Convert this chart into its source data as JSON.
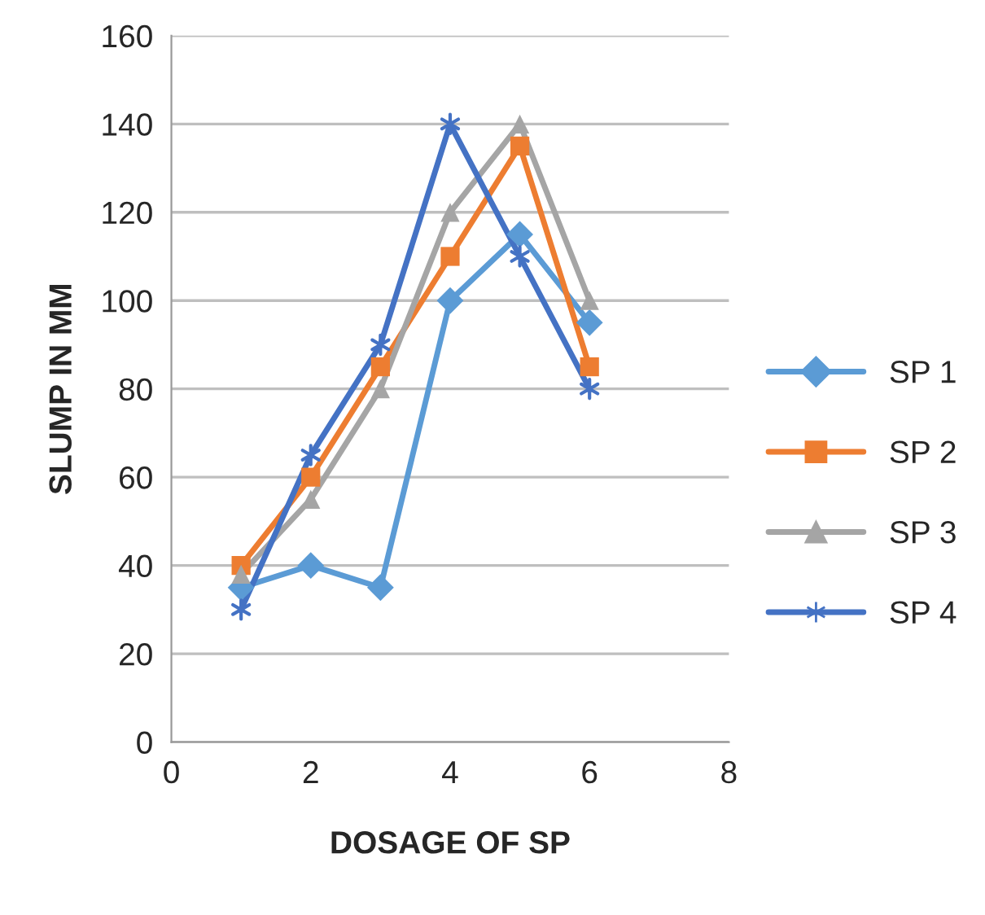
{
  "chart_data": {
    "type": "line",
    "xlabel": "DOSAGE OF SP",
    "ylabel": "SLUMP IN MM",
    "x": [
      1,
      2,
      3,
      4,
      5,
      6
    ],
    "series": [
      {
        "name": "SP 1",
        "color": "#5b9bd5",
        "marker": "diamond",
        "values": [
          35,
          40,
          35,
          100,
          115,
          95
        ]
      },
      {
        "name": "SP 2",
        "color": "#ed7d31",
        "marker": "square",
        "values": [
          40,
          60,
          85,
          110,
          135,
          85
        ]
      },
      {
        "name": "SP 3",
        "color": "#a5a5a5",
        "marker": "triangle",
        "values": [
          38,
          55,
          80,
          120,
          140,
          100
        ]
      },
      {
        "name": "SP 4",
        "color": "#4472c4",
        "marker": "cross",
        "values": [
          30,
          65,
          90,
          140,
          110,
          80
        ]
      }
    ],
    "xlim": [
      0,
      8
    ],
    "xticks": [
      0,
      2,
      4,
      6,
      8
    ],
    "ylim": [
      0,
      160
    ],
    "yticks": [
      0,
      20,
      40,
      60,
      80,
      100,
      120,
      140,
      160
    ],
    "grid": "y",
    "legend": "right",
    "line_style": "solid"
  }
}
